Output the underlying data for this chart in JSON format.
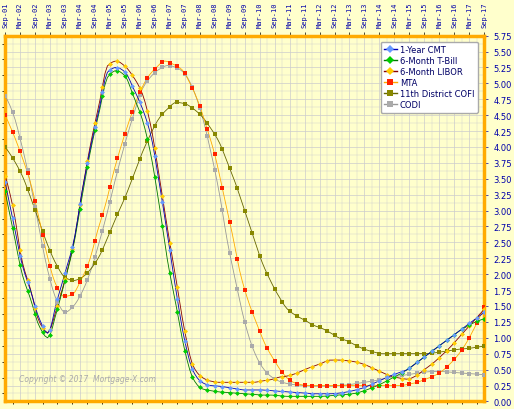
{
  "background_color": "#ffffcc",
  "grid_color": "#cccccc",
  "border_color": "#ffaa00",
  "copyright": "Copyright © 2017  Mortgage-X.com",
  "ymin": 0.0,
  "ymax": 5.75,
  "ylabel_ticks": [
    0.0,
    0.25,
    0.5,
    0.75,
    1.0,
    1.25,
    1.5,
    1.75,
    2.0,
    2.25,
    2.5,
    2.75,
    3.0,
    3.25,
    3.5,
    3.75,
    4.0,
    4.25,
    4.5,
    4.75,
    5.0,
    5.25,
    5.5,
    5.75
  ],
  "xtick_positions": [
    0,
    6,
    12,
    18,
    24,
    30,
    36,
    42,
    48,
    54,
    60,
    66,
    72,
    78,
    84,
    90,
    96,
    102,
    108,
    114,
    120,
    126,
    132,
    138,
    144,
    150,
    156,
    162,
    168,
    174,
    180,
    186,
    192
  ],
  "xtick_labels": [
    "Sep-01",
    "Mar-02",
    "Sep-02",
    "Mar-03",
    "Sep-03",
    "Mar-04",
    "Sep-04",
    "Mar-05",
    "Sep-05",
    "Mar-06",
    "Sep-06",
    "Mar-07",
    "Sep-07",
    "Mar-08",
    "Sep-08",
    "Mar-09",
    "Sep-09",
    "Mar-10",
    "Sep-10",
    "Mar-11",
    "Sep-11",
    "Mar-12",
    "Sep-12",
    "Mar-13",
    "Sep-13",
    "Mar-14",
    "Sep-14",
    "Mar-15",
    "Sep-15",
    "Mar-16",
    "Sep-16",
    "Mar-17",
    "Sep-17"
  ],
  "n_months": 193,
  "legend": {
    "cmt_1yr": {
      "label": "1-Year CMT",
      "lcolor": "#0000bb",
      "mcolor": "#6699ff",
      "marker": "D"
    },
    "tbill_6mo": {
      "label": "6-Month T-Bill",
      "lcolor": "#007700",
      "mcolor": "#00cc00",
      "marker": "D"
    },
    "libor_6mo": {
      "label": "6-Month LIBOR",
      "lcolor": "#880000",
      "mcolor": "#ffcc00",
      "marker": "D"
    },
    "mta": {
      "label": "MTA",
      "lcolor": "#ffaa00",
      "mcolor": "#ff2200",
      "marker": "s"
    },
    "cofi": {
      "label": "11th District COFI",
      "lcolor": "#666600",
      "mcolor": "#888800",
      "marker": "s"
    },
    "codi": {
      "label": "CODI",
      "lcolor": "#999999",
      "mcolor": "#aaaaaa",
      "marker": "s"
    }
  },
  "series_knots": {
    "cmt_1yr": [
      3.45,
      2.8,
      2.15,
      1.73,
      1.3,
      1.07,
      1.55,
      2.02,
      2.5,
      3.3,
      4.0,
      4.6,
      5.18,
      5.25,
      5.18,
      4.92,
      4.62,
      4.2,
      3.45,
      2.6,
      1.72,
      0.95,
      0.47,
      0.3,
      0.25,
      0.24,
      0.22,
      0.2,
      0.18,
      0.18,
      0.18,
      0.17,
      0.16,
      0.15,
      0.14,
      0.13,
      0.12,
      0.12,
      0.12,
      0.13,
      0.15,
      0.18,
      0.22,
      0.28,
      0.34,
      0.4,
      0.45,
      0.5,
      0.6,
      0.7,
      0.8,
      0.9,
      1.0,
      1.1,
      1.2,
      1.3,
      1.4
    ],
    "tbill_6mo": [
      3.3,
      2.65,
      2.0,
      1.6,
      1.18,
      1.0,
      1.4,
      1.9,
      2.45,
      3.22,
      3.95,
      4.55,
      5.1,
      5.2,
      5.12,
      4.8,
      4.45,
      3.9,
      3.1,
      2.2,
      1.5,
      0.8,
      0.35,
      0.2,
      0.17,
      0.15,
      0.14,
      0.13,
      0.12,
      0.11,
      0.1,
      0.1,
      0.09,
      0.08,
      0.08,
      0.08,
      0.08,
      0.08,
      0.09,
      0.1,
      0.11,
      0.13,
      0.17,
      0.22,
      0.28,
      0.35,
      0.42,
      0.5,
      0.6,
      0.7,
      0.8,
      0.9,
      1.0,
      1.1,
      1.18,
      1.25,
      1.3
    ],
    "libor_6mo": [
      3.55,
      3.0,
      2.2,
      1.75,
      1.25,
      1.08,
      1.45,
      1.92,
      2.48,
      3.3,
      4.05,
      4.68,
      5.28,
      5.35,
      5.27,
      5.1,
      4.85,
      4.35,
      3.55,
      2.7,
      1.9,
      1.1,
      0.55,
      0.38,
      0.32,
      0.3,
      0.3,
      0.3,
      0.3,
      0.3,
      0.32,
      0.34,
      0.38,
      0.4,
      0.44,
      0.5,
      0.55,
      0.6,
      0.65,
      0.65,
      0.64,
      0.62,
      0.58,
      0.52,
      0.46,
      0.4,
      0.37,
      0.35,
      0.4,
      0.5,
      0.6,
      0.72,
      0.85,
      1.0,
      1.15,
      1.3,
      1.45
    ],
    "mta": [
      4.5,
      4.2,
      3.85,
      3.45,
      2.9,
      2.3,
      1.85,
      1.65,
      1.68,
      1.9,
      2.2,
      2.68,
      3.12,
      3.65,
      4.1,
      4.5,
      4.85,
      5.1,
      5.25,
      5.35,
      5.3,
      5.22,
      5.0,
      4.7,
      4.3,
      3.85,
      3.25,
      2.65,
      2.0,
      1.55,
      1.2,
      0.88,
      0.65,
      0.45,
      0.32,
      0.27,
      0.25,
      0.25,
      0.25,
      0.25,
      0.25,
      0.25,
      0.25,
      0.25,
      0.25,
      0.25,
      0.25,
      0.25,
      0.27,
      0.3,
      0.35,
      0.4,
      0.48,
      0.6,
      0.75,
      0.95,
      1.2,
      1.48
    ],
    "cofi": [
      4.0,
      3.8,
      3.55,
      3.2,
      2.82,
      2.45,
      2.15,
      1.95,
      1.9,
      1.95,
      2.08,
      2.28,
      2.58,
      2.9,
      3.2,
      3.55,
      3.9,
      4.2,
      4.45,
      4.6,
      4.7,
      4.68,
      4.6,
      4.48,
      4.3,
      4.08,
      3.75,
      3.4,
      3.0,
      2.6,
      2.2,
      1.9,
      1.65,
      1.45,
      1.35,
      1.28,
      1.2,
      1.15,
      1.08,
      1.0,
      0.95,
      0.88,
      0.82,
      0.78,
      0.75,
      0.75,
      0.75,
      0.75,
      0.75,
      0.75,
      0.76,
      0.78,
      0.8,
      0.82,
      0.83,
      0.85,
      0.87
    ],
    "codi": [
      4.8,
      4.5,
      4.0,
      3.4,
      2.7,
      2.05,
      1.6,
      1.4,
      1.5,
      1.72,
      2.05,
      2.5,
      3.0,
      3.55,
      4.05,
      4.5,
      4.9,
      5.1,
      5.22,
      5.28,
      5.25,
      5.15,
      4.9,
      4.5,
      3.95,
      3.3,
      2.5,
      1.85,
      1.25,
      0.82,
      0.55,
      0.4,
      0.32,
      0.28,
      0.26,
      0.25,
      0.24,
      0.24,
      0.24,
      0.25,
      0.26,
      0.28,
      0.3,
      0.32,
      0.35,
      0.38,
      0.4,
      0.42,
      0.44,
      0.46,
      0.47,
      0.47,
      0.46,
      0.45,
      0.44,
      0.43,
      0.42
    ]
  }
}
